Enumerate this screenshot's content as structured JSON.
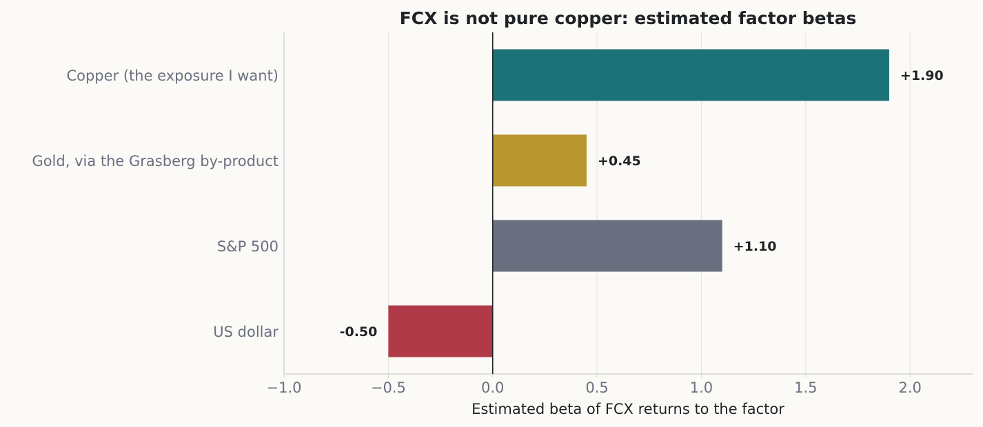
{
  "chart_data": {
    "type": "bar",
    "orientation": "horizontal",
    "title": "FCX is not pure copper: estimated factor betas",
    "xlabel": "Estimated beta of FCX returns to the factor",
    "ylabel": "",
    "categories": [
      "Copper (the exposure I want)",
      "Gold, via the Grasberg by-product",
      "S&P 500",
      "US dollar"
    ],
    "values": [
      1.9,
      0.45,
      1.1,
      -0.5
    ],
    "data_labels": [
      "+1.90",
      "+0.45",
      "+1.10",
      "-0.50"
    ],
    "colors": [
      "#1b7378",
      "#b8952f",
      "#6b7080",
      "#b03a48"
    ],
    "xlim": [
      -1.0,
      2.3
    ],
    "xticks": [
      -1.0,
      -0.5,
      0.0,
      0.5,
      1.0,
      1.5,
      2.0
    ],
    "xtick_labels": [
      "−1.0",
      "−0.5",
      "0.0",
      "0.5",
      "1.0",
      "1.5",
      "2.0"
    ],
    "grid": "vertical",
    "legend": "none",
    "zero_line": true
  }
}
